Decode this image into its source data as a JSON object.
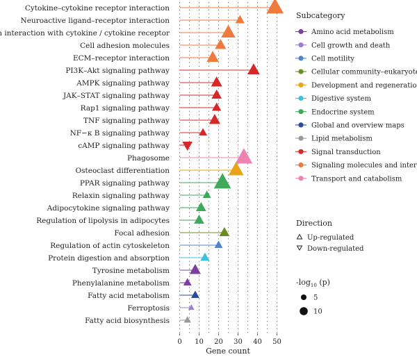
{
  "chart_data": {
    "type": "lollipop",
    "xlabel": "Gene count",
    "xlim": [
      -2,
      53
    ],
    "xticks": [
      0,
      10,
      20,
      30,
      40,
      50
    ],
    "grid": "dotted vertical lines every 5 genes",
    "legend_position": "right",
    "pathways": [
      {
        "name": "Cytokine–cytokine receptor interaction",
        "count": 49,
        "subcategory": "Signaling molecules and interaction",
        "direction": "up",
        "neg_log10_p": 12
      },
      {
        "name": "Neuroactive ligand–receptor interaction",
        "count": 31,
        "subcategory": "Signaling molecules and interaction",
        "direction": "up",
        "neg_log10_p": 4
      },
      {
        "name": "Viral protein interaction with cytokine / cytokine receptor",
        "count": 25,
        "subcategory": "Signaling molecules and interaction",
        "direction": "up",
        "neg_log10_p": 9
      },
      {
        "name": "Cell adhesion molecules",
        "count": 21,
        "subcategory": "Signaling molecules and interaction",
        "direction": "up",
        "neg_log10_p": 6
      },
      {
        "name": "ECM–receptor interaction",
        "count": 17,
        "subcategory": "Signaling molecules and interaction",
        "direction": "up",
        "neg_log10_p": 7
      },
      {
        "name": "PI3K–Akt signaling pathway",
        "count": 38,
        "subcategory": "Signal transduction",
        "direction": "up",
        "neg_log10_p": 7
      },
      {
        "name": "AMPK signaling pathway",
        "count": 19,
        "subcategory": "Signal transduction",
        "direction": "up",
        "neg_log10_p": 6
      },
      {
        "name": "JAK–STAT signaling pathway",
        "count": 19,
        "subcategory": "Signal transduction",
        "direction": "up",
        "neg_log10_p": 5
      },
      {
        "name": "Rap1 signaling pathway",
        "count": 19,
        "subcategory": "Signal transduction",
        "direction": "up",
        "neg_log10_p": 4
      },
      {
        "name": "TNF signaling pathway",
        "count": 18,
        "subcategory": "Signal transduction",
        "direction": "up",
        "neg_log10_p": 6
      },
      {
        "name": "NF−κ B signaling pathway",
        "count": 12,
        "subcategory": "Signal transduction",
        "direction": "up",
        "neg_log10_p": 3
      },
      {
        "name": "cAMP signaling pathway",
        "count": 4,
        "subcategory": "Signal transduction",
        "direction": "down",
        "neg_log10_p": 5
      },
      {
        "name": "Phagosome",
        "count": 33,
        "subcategory": "Transport and catabolism",
        "direction": "up",
        "neg_log10_p": 12
      },
      {
        "name": "Osteoclast differentiation",
        "count": 29,
        "subcategory": "Development and regeneration",
        "direction": "up",
        "neg_log10_p": 10
      },
      {
        "name": "PPAR signaling pathway",
        "count": 22,
        "subcategory": "Endocrine system",
        "direction": "up",
        "neg_log10_p": 12
      },
      {
        "name": "Relaxin signaling pathway",
        "count": 14,
        "subcategory": "Endocrine system",
        "direction": "up",
        "neg_log10_p": 3
      },
      {
        "name": "Adipocytokine signaling pathway",
        "count": 11,
        "subcategory": "Endocrine system",
        "direction": "up",
        "neg_log10_p": 5
      },
      {
        "name": "Regulation of lipolysis in adipocytes",
        "count": 10,
        "subcategory": "Endocrine system",
        "direction": "up",
        "neg_log10_p": 5
      },
      {
        "name": "Focal adhesion",
        "count": 23,
        "subcategory": "Cellular community–eukaryotes",
        "direction": "up",
        "neg_log10_p": 5
      },
      {
        "name": "Regulation of actin cytoskeleton",
        "count": 20,
        "subcategory": "Cell motility",
        "direction": "up",
        "neg_log10_p": 3
      },
      {
        "name": "Protein digestion and absorption",
        "count": 13,
        "subcategory": "Digestive system",
        "direction": "up",
        "neg_log10_p": 4
      },
      {
        "name": "Tyrosine metabolism",
        "count": 8,
        "subcategory": "Amino acid metabolism",
        "direction": "up",
        "neg_log10_p": 6
      },
      {
        "name": "Phenylalanine metabolism",
        "count": 4,
        "subcategory": "Amino acid metabolism",
        "direction": "up",
        "neg_log10_p": 3
      },
      {
        "name": "Fatty acid metabolism",
        "count": 8,
        "subcategory": "Global and overview maps",
        "direction": "up",
        "neg_log10_p": 3
      },
      {
        "name": "Ferroptosis",
        "count": 6,
        "subcategory": "Cell growth and death",
        "direction": "up",
        "neg_log10_p": 1
      },
      {
        "name": "Fatty acid biosynthesis",
        "count": 4,
        "subcategory": "Lipid metabolism",
        "direction": "up",
        "neg_log10_p": 2
      }
    ],
    "legend": {
      "subcategory_title": "Subcategory",
      "subcategories": [
        {
          "name": "Amino acid metabolism",
          "color": "#7B3FA0"
        },
        {
          "name": "Cell growth and death",
          "color": "#9B7FD0"
        },
        {
          "name": "Cell motility",
          "color": "#4F86C6"
        },
        {
          "name": "Cellular community–eukaryotes",
          "color": "#6B8E23"
        },
        {
          "name": "Development and regeneration",
          "color": "#E8A317"
        },
        {
          "name": "Digestive system",
          "color": "#3DC1E0"
        },
        {
          "name": "Endocrine system",
          "color": "#3CAA5A"
        },
        {
          "name": "Global and overview maps",
          "color": "#2B4C9A"
        },
        {
          "name": "Lipid metabolism",
          "color": "#999999"
        },
        {
          "name": "Signal transduction",
          "color": "#D62828"
        },
        {
          "name": "Signaling molecules and interaction",
          "color": "#EE7A3C"
        },
        {
          "name": "Transport and catabolism",
          "color": "#EE82B0"
        }
      ],
      "direction_title": "Direction",
      "directions": [
        {
          "name": "Up-regulated",
          "shape": "triangle-up"
        },
        {
          "name": "Down-regulated",
          "shape": "triangle-down"
        }
      ],
      "size_title_prefix": "-log",
      "size_title_sub": "10",
      "size_title_suffix": " (p)",
      "sizes": [
        {
          "label": "5",
          "value": 5
        },
        {
          "label": "10",
          "value": 10
        }
      ]
    }
  }
}
